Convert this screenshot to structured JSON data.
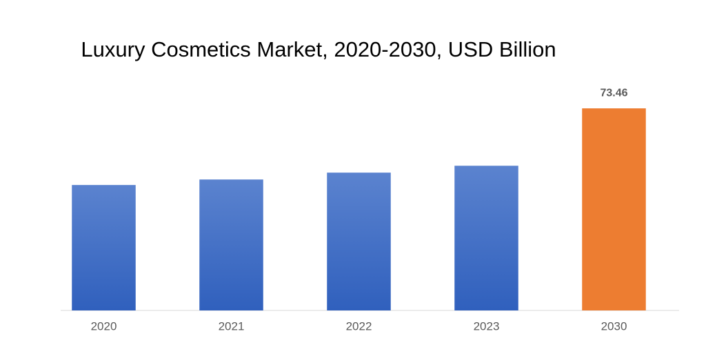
{
  "chart_data": {
    "type": "bar",
    "title": "Luxury Cosmetics Market, 2020-2030, USD Billion",
    "categories": [
      "2020",
      "2021",
      "2022",
      "2023",
      "2030"
    ],
    "values": [
      45.6,
      47.6,
      50.1,
      52.6,
      73.46
    ],
    "value_labels": [
      null,
      null,
      null,
      null,
      "73.46"
    ],
    "colors": [
      "#4472c4",
      "#4472c4",
      "#4472c4",
      "#4472c4",
      "#ed7d31"
    ],
    "ylim": [
      0,
      80
    ],
    "grid": false
  }
}
